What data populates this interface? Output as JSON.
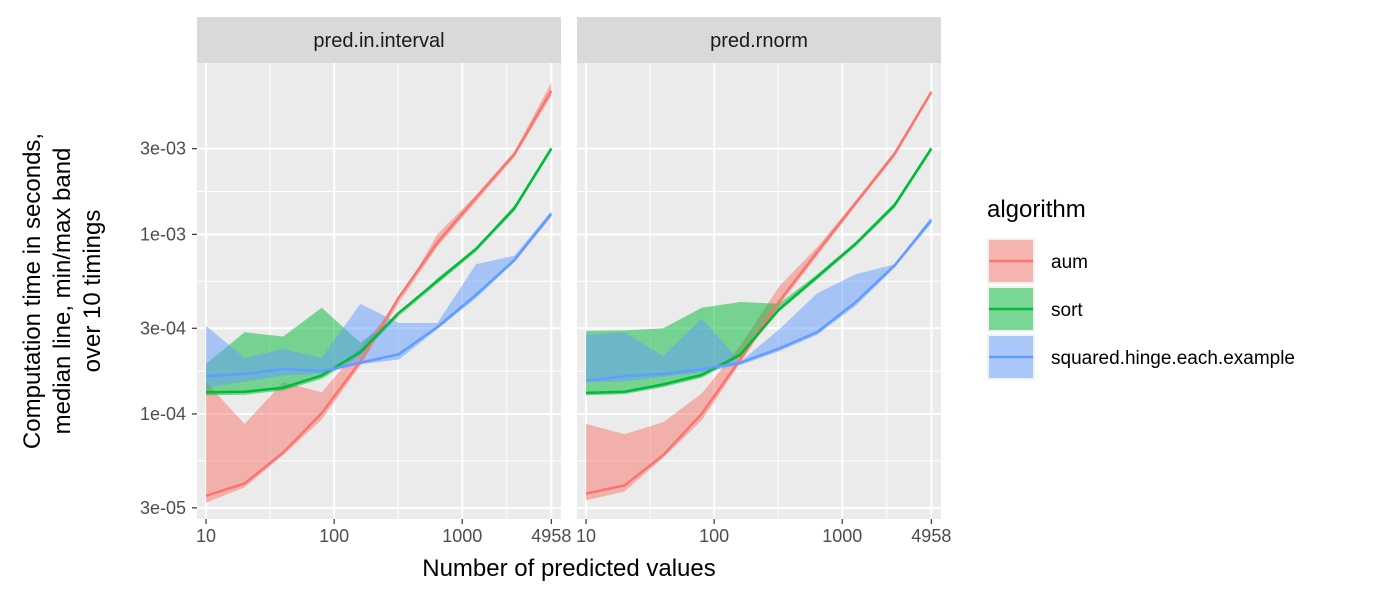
{
  "chart_data": {
    "type": "line",
    "facet_by": "panel",
    "panels": [
      "pred.in.interval",
      "pred.rnorm"
    ],
    "xlabel": "Number of predicted values",
    "ylabel_lines": [
      "Computation time in seconds,",
      "median line, min/max band",
      "over 10 timings"
    ],
    "x_scale": "log10",
    "y_scale": "log10",
    "xlim": [
      8.5,
      5900
    ],
    "ylim": [
      2.6e-05,
      0.009
    ],
    "x_ticks": [
      10,
      100,
      1000,
      4958
    ],
    "x_tick_labels": [
      "10",
      "100",
      "1000",
      "4958"
    ],
    "y_ticks": [
      3e-05,
      0.0001,
      0.0003,
      0.001,
      0.003
    ],
    "y_tick_labels": [
      "3e-05",
      "1e-04",
      "3e-04",
      "1e-03",
      "3e-03"
    ],
    "legend": {
      "title": "algorithm",
      "position": "right",
      "entries": [
        "aum",
        "sort",
        "squared.hinge.each.example"
      ]
    },
    "colors": {
      "aum": "#F8766D",
      "sort": "#00BA38",
      "squared.hinge.each.example": "#619CFF",
      "panel_bg": "#EBEBEB",
      "strip_bg": "#D9D9D9",
      "grid": "#FFFFFF"
    },
    "x": [
      10,
      20,
      40,
      80,
      160,
      320,
      640,
      1280,
      2560,
      4958
    ],
    "series": [
      {
        "name": "aum",
        "panel": "pred.in.interval",
        "median": [
          3.5e-05,
          4.1e-05,
          6.1e-05,
          0.000101,
          0.000196,
          0.000446,
          0.000901,
          0.001601,
          0.002801,
          0.006301
        ],
        "min": [
          3.2e-05,
          3.9e-05,
          5.9e-05,
          9.3e-05,
          0.000186,
          0.000416,
          0.000851,
          0.001521,
          0.002701,
          0.005901
        ],
        "max": [
          0.00015,
          8.8e-05,
          0.00015,
          0.000132,
          0.000235,
          0.000426,
          0.001001,
          0.001651,
          0.002901,
          0.007001
        ]
      },
      {
        "name": "sort",
        "panel": "pred.in.interval",
        "median": [
          0.000132,
          0.000133,
          0.00014,
          0.000164,
          0.000221,
          0.000366,
          0.000551,
          0.000831,
          0.001401,
          0.003001
        ],
        "min": [
          0.000127,
          0.000128,
          0.000135,
          0.000157,
          0.000211,
          0.000351,
          0.000531,
          0.000801,
          0.001351,
          0.002901
        ],
        "max": [
          0.00019,
          0.000285,
          0.00027,
          0.00039,
          0.00025,
          0.000355,
          0.000571,
          0.000841,
          0.001451,
          0.003101
        ]
      },
      {
        "name": "squared.hinge.each.example",
        "panel": "pred.in.interval",
        "median": [
          0.000162,
          0.000167,
          0.000178,
          0.000173,
          0.000193,
          0.000215,
          0.000305,
          0.000461,
          0.000721,
          0.001301
        ],
        "min": [
          0.00014,
          0.000151,
          0.000163,
          0.000168,
          0.000189,
          0.000201,
          0.000296,
          0.000441,
          0.000701,
          0.001251
        ],
        "max": [
          0.00031,
          0.000205,
          0.00023,
          0.000205,
          0.00041,
          0.000321,
          0.000321,
          0.000681,
          0.000761,
          0.001351
        ]
      },
      {
        "name": "aum",
        "panel": "pred.rnorm",
        "median": [
          3.6e-05,
          4e-05,
          5.9e-05,
          0.0001,
          0.000202,
          0.000421,
          0.000801,
          0.001501,
          0.002801,
          0.006201
        ],
        "min": [
          3.3e-05,
          3.7e-05,
          5.7e-05,
          9.2e-05,
          0.000192,
          0.000401,
          0.000761,
          0.001451,
          0.002701,
          0.006001
        ],
        "max": [
          8.8e-05,
          7.7e-05,
          9e-05,
          0.00013,
          0.00024,
          0.000511,
          0.000851,
          0.001551,
          0.002901,
          0.006401
        ]
      },
      {
        "name": "sort",
        "panel": "pred.rnorm",
        "median": [
          0.000131,
          0.000133,
          0.000146,
          0.000165,
          0.000214,
          0.000381,
          0.000581,
          0.000891,
          0.001451,
          0.003001
        ],
        "min": [
          0.000127,
          0.000129,
          0.000141,
          0.000159,
          0.000207,
          0.000371,
          0.000561,
          0.000861,
          0.001401,
          0.002901
        ],
        "max": [
          0.00029,
          0.000292,
          0.0003,
          0.00039,
          0.00042,
          0.000411,
          0.000601,
          0.000911,
          0.001501,
          0.003101
        ]
      },
      {
        "name": "squared.hinge.each.example",
        "panel": "pred.rnorm",
        "median": [
          0.000153,
          0.000162,
          0.000167,
          0.000177,
          0.000193,
          0.000231,
          0.000286,
          0.000421,
          0.000671,
          0.001201
        ],
        "min": [
          0.00015,
          0.000152,
          0.000161,
          0.000171,
          0.000187,
          0.000223,
          0.000276,
          0.000401,
          0.000651,
          0.001151
        ],
        "max": [
          0.000275,
          0.000285,
          0.00021,
          0.00034,
          0.000195,
          0.000295,
          0.000471,
          0.000601,
          0.000681,
          0.001251
        ]
      }
    ]
  }
}
